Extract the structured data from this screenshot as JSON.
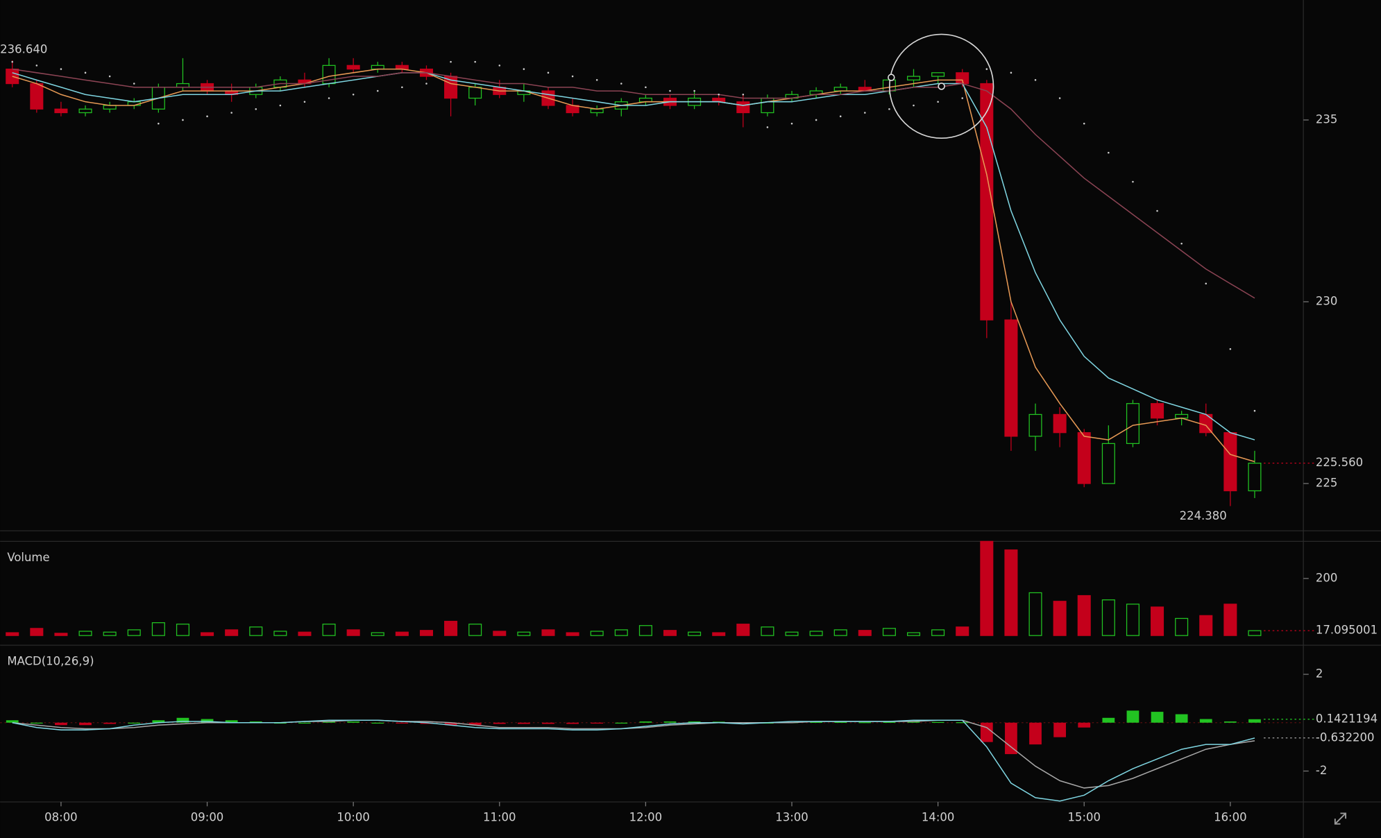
{
  "chart_data": [
    {
      "type": "candlestick",
      "x": [
        460,
        470,
        480,
        490,
        500,
        510,
        520,
        530,
        540,
        550,
        560,
        570,
        580,
        590,
        600,
        610,
        620,
        630,
        640,
        650,
        660,
        670,
        680,
        690,
        700,
        710,
        720,
        730,
        740,
        750,
        760,
        770,
        780,
        790,
        800,
        810,
        820,
        830,
        840,
        850,
        860,
        870,
        880,
        890,
        900,
        910,
        920,
        930,
        940,
        950,
        960,
        970
      ],
      "open": [
        236.4,
        236.0,
        235.3,
        235.2,
        235.3,
        235.4,
        235.3,
        235.9,
        236.0,
        235.8,
        235.7,
        235.9,
        236.1,
        236.0,
        236.5,
        236.4,
        236.5,
        236.4,
        236.2,
        235.6,
        235.9,
        235.7,
        235.8,
        235.4,
        235.2,
        235.3,
        235.5,
        235.6,
        235.4,
        235.6,
        235.5,
        235.2,
        235.6,
        235.7,
        235.8,
        235.9,
        235.8,
        236.1,
        236.2,
        236.3,
        236.0,
        229.5,
        226.3,
        226.9,
        226.4,
        225.0,
        226.1,
        227.2,
        226.8,
        226.9,
        226.4,
        224.8
      ],
      "high": [
        236.64,
        236.1,
        235.5,
        235.4,
        235.5,
        235.6,
        236.0,
        236.7,
        236.1,
        236.0,
        236.0,
        236.2,
        236.3,
        236.7,
        236.7,
        236.6,
        236.6,
        236.5,
        236.3,
        236.0,
        236.1,
        236.0,
        235.9,
        235.6,
        235.4,
        235.6,
        235.7,
        235.7,
        235.8,
        235.7,
        235.7,
        235.7,
        235.8,
        235.9,
        236.0,
        236.1,
        236.2,
        236.4,
        236.3,
        236.4,
        236.1,
        230.0,
        227.2,
        227.1,
        226.5,
        226.6,
        227.3,
        227.3,
        227.0,
        227.2,
        226.4,
        225.9
      ],
      "low": [
        235.9,
        235.2,
        235.1,
        235.1,
        235.2,
        235.3,
        235.2,
        235.8,
        235.7,
        235.5,
        235.6,
        235.8,
        235.9,
        235.9,
        236.3,
        236.3,
        236.3,
        236.1,
        235.1,
        235.4,
        235.6,
        235.5,
        235.3,
        235.1,
        235.1,
        235.1,
        235.4,
        235.3,
        235.3,
        235.4,
        234.8,
        235.1,
        235.5,
        235.6,
        235.7,
        235.8,
        235.7,
        235.9,
        236.0,
        235.9,
        229.0,
        225.9,
        225.9,
        226.0,
        224.9,
        225.0,
        226.0,
        226.6,
        226.6,
        226.3,
        224.38,
        224.6
      ],
      "close": [
        236.0,
        235.3,
        235.2,
        235.3,
        235.4,
        235.5,
        235.9,
        236.0,
        235.8,
        235.7,
        235.9,
        236.1,
        236.0,
        236.5,
        236.4,
        236.5,
        236.4,
        236.2,
        235.6,
        235.9,
        235.7,
        235.8,
        235.4,
        235.2,
        235.3,
        235.5,
        235.6,
        235.4,
        235.6,
        235.5,
        235.2,
        235.6,
        235.7,
        235.8,
        235.9,
        235.8,
        236.1,
        236.2,
        236.3,
        236.0,
        229.5,
        226.3,
        226.9,
        226.4,
        225.0,
        226.1,
        227.2,
        226.8,
        226.9,
        226.4,
        224.8,
        225.56
      ],
      "up_color": "#22c322",
      "down_color": "#c4001b",
      "lines": [
        {
          "color": "#e89a55",
          "values": [
            236.2,
            236.0,
            235.7,
            235.5,
            235.4,
            235.4,
            235.6,
            235.8,
            235.8,
            235.8,
            235.8,
            235.9,
            236.0,
            236.2,
            236.3,
            236.4,
            236.4,
            236.3,
            236.0,
            235.9,
            235.8,
            235.8,
            235.6,
            235.4,
            235.3,
            235.4,
            235.5,
            235.5,
            235.5,
            235.5,
            235.4,
            235.5,
            235.6,
            235.7,
            235.8,
            235.8,
            235.9,
            236.0,
            236.1,
            236.1,
            233.5,
            230.0,
            228.2,
            227.2,
            226.3,
            226.2,
            226.6,
            226.7,
            226.8,
            226.6,
            225.8,
            225.6
          ]
        },
        {
          "color": "#7fd6e2",
          "values": [
            236.3,
            236.1,
            235.9,
            235.7,
            235.6,
            235.5,
            235.6,
            235.7,
            235.7,
            235.7,
            235.8,
            235.8,
            235.9,
            236.0,
            236.1,
            236.2,
            236.3,
            236.3,
            236.1,
            236.0,
            235.9,
            235.8,
            235.7,
            235.6,
            235.5,
            235.4,
            235.4,
            235.5,
            235.5,
            235.5,
            235.4,
            235.5,
            235.5,
            235.6,
            235.7,
            235.7,
            235.8,
            235.9,
            236.0,
            236.0,
            234.8,
            232.5,
            230.8,
            229.5,
            228.5,
            227.9,
            227.6,
            227.3,
            227.1,
            226.9,
            226.4,
            226.2
          ]
        },
        {
          "color": "#8c4454",
          "values": [
            236.4,
            236.3,
            236.2,
            236.1,
            236.0,
            235.9,
            235.9,
            235.9,
            235.9,
            235.9,
            235.9,
            236.0,
            236.0,
            236.1,
            236.2,
            236.2,
            236.3,
            236.3,
            236.2,
            236.1,
            236.0,
            236.0,
            235.9,
            235.9,
            235.8,
            235.8,
            235.7,
            235.7,
            235.7,
            235.7,
            235.6,
            235.6,
            235.6,
            235.7,
            235.7,
            235.8,
            235.8,
            235.9,
            235.9,
            236.0,
            235.8,
            235.3,
            234.6,
            234.0,
            233.4,
            232.9,
            232.4,
            231.9,
            231.4,
            230.9,
            230.5,
            230.1
          ]
        }
      ],
      "sar": {
        "color": "#cfcfcf",
        "values": [
          236.6,
          236.5,
          236.4,
          236.3,
          236.2,
          236.0,
          234.9,
          235.0,
          235.1,
          235.2,
          235.3,
          235.4,
          235.5,
          235.6,
          235.7,
          235.8,
          235.9,
          236.0,
          236.6,
          236.6,
          236.5,
          236.4,
          236.3,
          236.2,
          236.1,
          236.0,
          235.9,
          235.8,
          235.8,
          235.7,
          235.7,
          234.8,
          234.9,
          235.0,
          235.1,
          235.2,
          235.3,
          235.4,
          235.5,
          235.6,
          236.4,
          236.3,
          236.1,
          235.6,
          234.9,
          234.1,
          233.3,
          232.5,
          231.6,
          230.5,
          228.7,
          227.0
        ]
      },
      "ylim": [
        223.7,
        238.3
      ],
      "yticks": [
        225,
        230,
        235
      ],
      "xlim": [
        455,
        990
      ],
      "xticks": [
        {
          "value": 480,
          "label": "08:00"
        },
        {
          "value": 540,
          "label": "09:00"
        },
        {
          "value": 600,
          "label": "10:00"
        },
        {
          "value": 660,
          "label": "11:00"
        },
        {
          "value": 720,
          "label": "12:00"
        },
        {
          "value": 780,
          "label": "13:00"
        },
        {
          "value": 840,
          "label": "14:00"
        },
        {
          "value": 900,
          "label": "15:00"
        },
        {
          "value": 960,
          "label": "16:00"
        }
      ],
      "annotations": [
        {
          "x": 460,
          "value": 236.64,
          "label": "236.640"
        },
        {
          "x": 960,
          "value": 224.38,
          "label": "224.380"
        }
      ],
      "last_label": {
        "value": 225.56,
        "label": "225.560",
        "color": "#c4001b"
      }
    },
    {
      "type": "bar",
      "title": "Volume",
      "values": [
        10,
        25,
        8,
        15,
        12,
        20,
        45,
        40,
        10,
        20,
        30,
        15,
        12,
        40,
        20,
        10,
        12,
        18,
        50,
        40,
        15,
        12,
        20,
        10,
        15,
        20,
        35,
        18,
        12,
        10,
        40,
        30,
        12,
        15,
        20,
        18,
        25,
        10,
        20,
        30,
        330,
        300,
        150,
        120,
        140,
        125,
        110,
        100,
        60,
        70,
        110,
        17.095001
      ],
      "ylim": [
        0,
        330
      ],
      "yticks": [
        200
      ],
      "last_label": {
        "value": 17.095001,
        "label": "17.095001",
        "color": "#c4001b"
      }
    },
    {
      "type": "macd",
      "title": "MACD(10,26,9)",
      "histogram": [
        0.1,
        0.0,
        -0.1,
        -0.1,
        -0.05,
        0.0,
        0.1,
        0.2,
        0.15,
        0.1,
        0.05,
        0.0,
        0.0,
        0.05,
        0.05,
        0.0,
        -0.02,
        -0.05,
        -0.1,
        -0.1,
        -0.05,
        -0.05,
        -0.05,
        -0.05,
        -0.03,
        0.0,
        0.05,
        0.05,
        0.05,
        0.04,
        0.02,
        0.0,
        0.02,
        0.03,
        0.03,
        0.02,
        0.03,
        0.04,
        0.03,
        0.02,
        -0.8,
        -1.3,
        -0.9,
        -0.6,
        -0.2,
        0.2,
        0.5,
        0.45,
        0.35,
        0.15,
        0.05,
        0.1421194
      ],
      "macd": [
        0.0,
        -0.2,
        -0.3,
        -0.3,
        -0.25,
        -0.1,
        0.0,
        0.05,
        0.05,
        0.0,
        0.0,
        0.0,
        0.05,
        0.1,
        0.1,
        0.1,
        0.05,
        0.0,
        -0.1,
        -0.2,
        -0.25,
        -0.25,
        -0.25,
        -0.3,
        -0.3,
        -0.25,
        -0.15,
        -0.05,
        0.0,
        0.0,
        -0.05,
        0.0,
        0.05,
        0.05,
        0.05,
        0.05,
        0.05,
        0.1,
        0.1,
        0.1,
        -1.0,
        -2.5,
        -3.1,
        -3.24,
        -3.0,
        -2.4,
        -1.9,
        -1.5,
        -1.1,
        -0.9,
        -0.9,
        -0.6322
      ],
      "signal": [
        0.0,
        -0.1,
        -0.2,
        -0.25,
        -0.25,
        -0.2,
        -0.1,
        -0.05,
        0.0,
        0.0,
        0.0,
        0.0,
        0.05,
        0.05,
        0.1,
        0.1,
        0.05,
        0.05,
        0.0,
        -0.1,
        -0.2,
        -0.2,
        -0.2,
        -0.25,
        -0.25,
        -0.25,
        -0.2,
        -0.1,
        -0.05,
        0.0,
        0.0,
        0.0,
        0.0,
        0.05,
        0.05,
        0.05,
        0.05,
        0.05,
        0.1,
        0.1,
        -0.2,
        -1.0,
        -1.8,
        -2.4,
        -2.7,
        -2.6,
        -2.3,
        -1.9,
        -1.5,
        -1.1,
        -0.9,
        -0.75
      ],
      "macd_color": "#7fd6e2",
      "signal_color": "#a8a8a8",
      "up_color": "#22c322",
      "down_color": "#c4001b",
      "ylim": [
        -3.24,
        3.13
      ],
      "yticks": [
        -2,
        2
      ],
      "last_labels": [
        {
          "value": 0.1421194,
          "label": "0.1421194",
          "color": "#22c322"
        },
        {
          "value": -0.6322,
          "label": "-0.632200",
          "color": "#a8a8a8"
        }
      ]
    }
  ]
}
